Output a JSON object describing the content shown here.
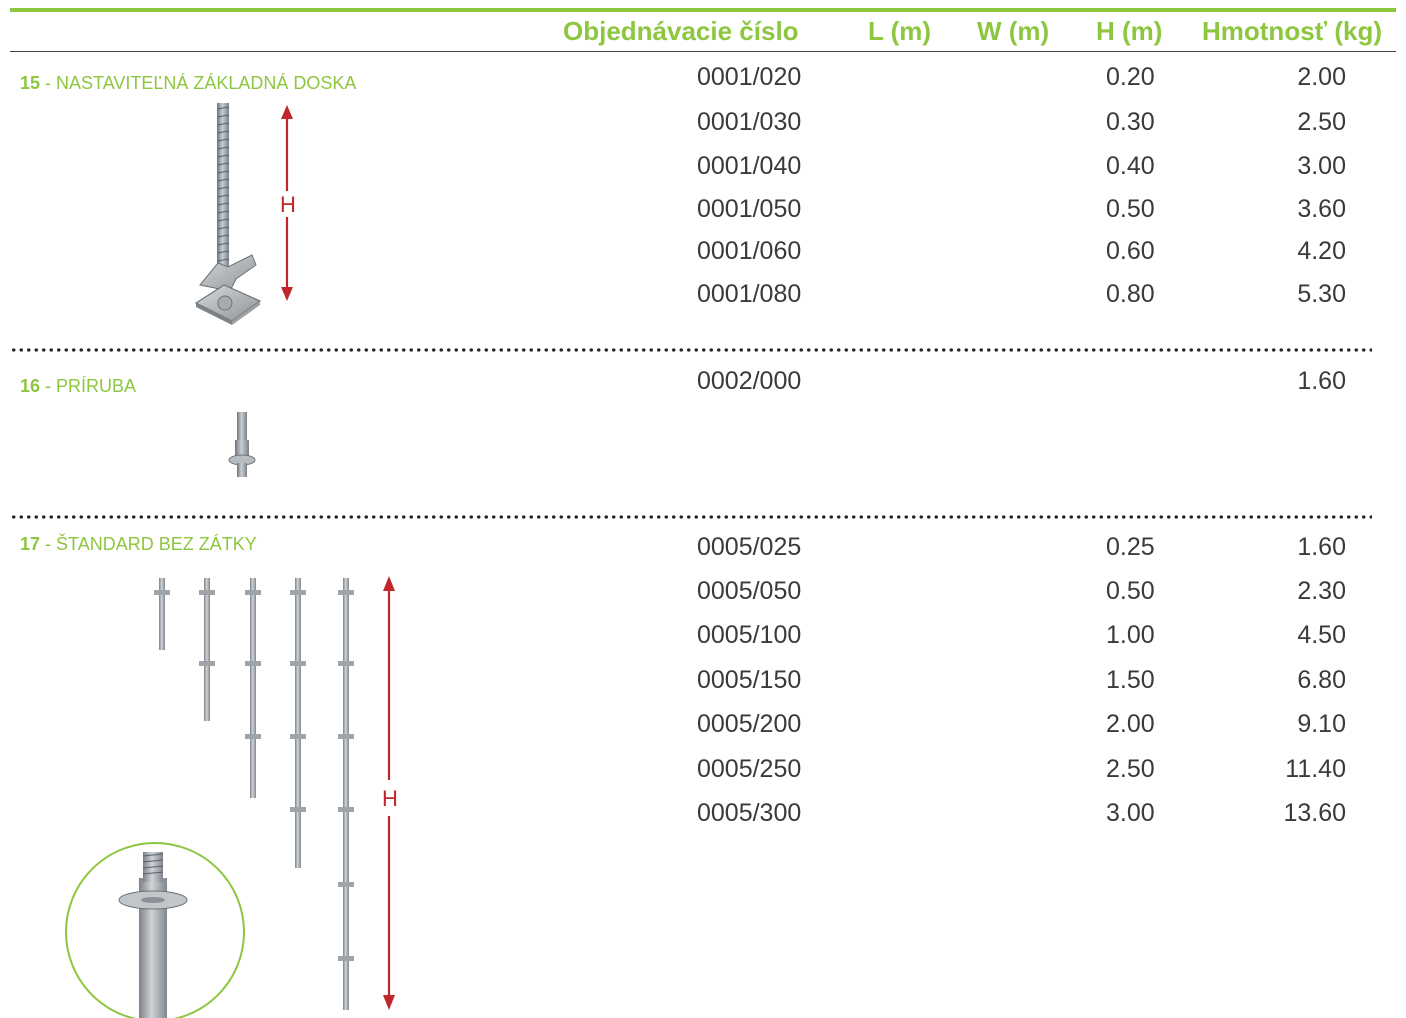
{
  "header": {
    "columns": {
      "order": "Objednávacie číslo",
      "l": "L (m)",
      "w": "W (m)",
      "h": "H (m)",
      "weight": "Hmotnosť (kg)"
    }
  },
  "sections": [
    {
      "number": "15",
      "name": " - NASTAVITEĽNÁ ZÁKLADNÁ DOSKA",
      "dimension_label": "H",
      "rows": [
        {
          "order": "0001/020",
          "h": "0.20",
          "weight": "2.00"
        },
        {
          "order": "0001/030",
          "h": "0.30",
          "weight": "2.50"
        },
        {
          "order": "0001/040",
          "h": "0.40",
          "weight": "3.00"
        },
        {
          "order": "0001/050",
          "h": "0.50",
          "weight": "3.60"
        },
        {
          "order": "0001/060",
          "h": "0.60",
          "weight": "4.20"
        },
        {
          "order": "0001/080",
          "h": "0.80",
          "weight": "5.30"
        }
      ]
    },
    {
      "number": "16",
      "name": " - PRÍRUBA",
      "rows": [
        {
          "order": "0002/000",
          "h": "",
          "weight": "1.60"
        }
      ]
    },
    {
      "number": "17",
      "name": " - ŠTANDARD BEZ ZÁTKY",
      "dimension_label": "H",
      "rows": [
        {
          "order": "0005/025",
          "h": "0.25",
          "weight": "1.60"
        },
        {
          "order": "0005/050",
          "h": "0.50",
          "weight": "2.30"
        },
        {
          "order": "0005/100",
          "h": "1.00",
          "weight": "4.50"
        },
        {
          "order": "0005/150",
          "h": "1.50",
          "weight": "6.80"
        },
        {
          "order": "0005/200",
          "h": "2.00",
          "weight": "9.10"
        },
        {
          "order": "0005/250",
          "h": "2.50",
          "weight": "11.40"
        },
        {
          "order": "0005/300",
          "h": "3.00",
          "weight": "13.60"
        }
      ]
    }
  ],
  "colors": {
    "accent": "#8dc63f",
    "dimension": "#c0272d",
    "text": "#3a3a3a"
  }
}
